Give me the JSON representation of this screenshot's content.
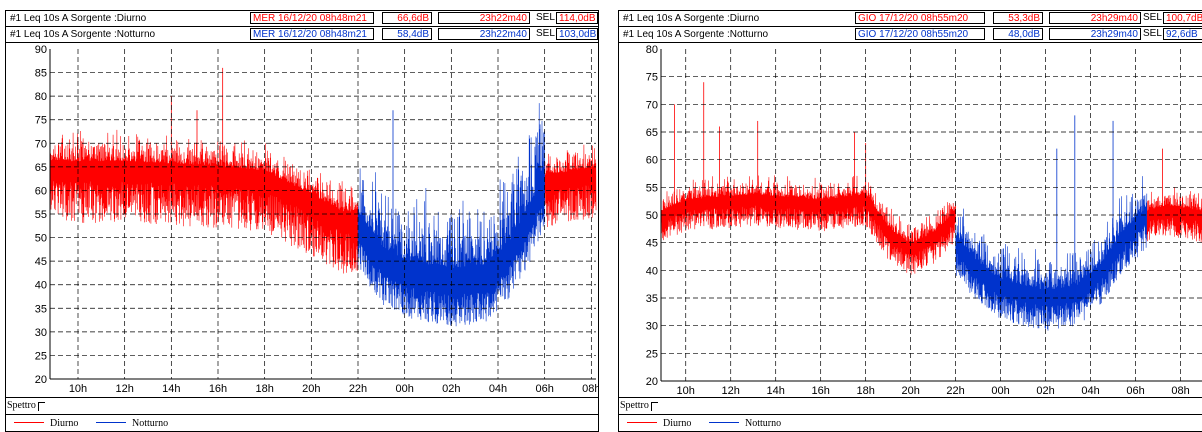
{
  "colors": {
    "diurno": "#ff0000",
    "notturno": "#0033cc"
  },
  "panels": [
    {
      "rows": [
        {
          "title": "#1  Leq 10s  A  Sorgente :Diurno",
          "datetime": "MER 16/12/20 08h48m21",
          "level": "66,6dB",
          "duration": "23h22m40",
          "sel_label": "SEL",
          "sel_value": "114,0dB",
          "color": "red"
        },
        {
          "title": "#1  Leq 10s  A  Sorgente :Notturno",
          "datetime": "MER 16/12/20 08h48m21",
          "level": "58,4dB",
          "duration": "23h22m40",
          "sel_label": "SEL",
          "sel_value": "103,0dB",
          "color": "blue"
        }
      ],
      "spettro": "Spettro",
      "legend": {
        "diurno": "Diurno",
        "notturno": "Notturno"
      }
    },
    {
      "rows": [
        {
          "title": "#1  Leq 10s  A  Sorgente :Diurno",
          "datetime": "GIO 17/12/20 08h55m20",
          "level": "53,3dB",
          "duration": "23h29m40",
          "sel_label": "SEL",
          "sel_value": "100,7dB",
          "color": "red"
        },
        {
          "title": "#1  Leq 10s  A  Sorgente :Notturno",
          "datetime": "GIO 17/12/20 08h55m20",
          "level": "48,0dB",
          "duration": "23h29m40",
          "sel_label": "SEL",
          "sel_value": "92,6dB",
          "color": "blue"
        }
      ],
      "spettro": "Spettro",
      "legend": {
        "diurno": "Diurno",
        "notturno": "Notturno"
      }
    }
  ],
  "chart_data": [
    {
      "type": "line",
      "xlabel": "",
      "ylabel": "",
      "x_start_hour": 8.8,
      "x_end_hour": 32.2,
      "x_ticks": [
        "10h",
        "12h",
        "14h",
        "16h",
        "18h",
        "20h",
        "22h",
        "00h",
        "02h",
        "04h",
        "06h",
        "08h"
      ],
      "ylim": [
        20,
        90
      ],
      "y_ticks": [
        20,
        25,
        30,
        35,
        40,
        45,
        50,
        55,
        60,
        65,
        70,
        75,
        80,
        85,
        90
      ],
      "grid": true,
      "series": [
        {
          "name": "Diurno",
          "color": "#ff0000",
          "segments": [
            {
              "from_hour": 8.8,
              "to_hour": 22.0,
              "profile": [
                [
                  8.8,
                  65
                ],
                [
                  12,
                  65
                ],
                [
                  16,
                  64
                ],
                [
                  18,
                  63
                ],
                [
                  20,
                  58
                ],
                [
                  21.5,
                  54
                ],
                [
                  22.0,
                  55
                ]
              ],
              "spread_low": 12,
              "spread_high": 8,
              "peaks": [
                [
                  14.0,
                  80
                ],
                [
                  16.2,
                  86
                ],
                [
                  15.1,
                  77
                ]
              ]
            },
            {
              "from_hour": 30.0,
              "to_hour": 32.2,
              "profile": [
                [
                  30.0,
                  62
                ],
                [
                  31.0,
                  63
                ],
                [
                  32.2,
                  64
                ]
              ],
              "spread_low": 10,
              "spread_high": 7,
              "peaks": []
            }
          ]
        },
        {
          "name": "Notturno",
          "color": "#0033cc",
          "segments": [
            {
              "from_hour": 22.0,
              "to_hour": 30.0,
              "profile": [
                [
                  22.0,
                  52
                ],
                [
                  23,
                  45
                ],
                [
                  24,
                  42
                ],
                [
                  26,
                  40
                ],
                [
                  27.5,
                  41
                ],
                [
                  28.5,
                  46
                ],
                [
                  29.5,
                  55
                ],
                [
                  30.0,
                  62
                ]
              ],
              "spread_low": 9,
              "spread_high": 22,
              "peaks": [
                [
                  23.5,
                  77
                ],
                [
                  29.8,
                  73
                ]
              ]
            }
          ]
        }
      ]
    },
    {
      "type": "line",
      "xlabel": "",
      "ylabel": "",
      "x_start_hour": 8.9,
      "x_end_hour": 33.0,
      "x_ticks": [
        "10h",
        "12h",
        "14h",
        "16h",
        "18h",
        "20h",
        "22h",
        "00h",
        "02h",
        "04h",
        "06h",
        "08h"
      ],
      "ylim": [
        20,
        80
      ],
      "y_ticks": [
        20,
        25,
        30,
        35,
        40,
        45,
        50,
        55,
        60,
        65,
        70,
        75,
        80
      ],
      "grid": true,
      "series": [
        {
          "name": "Diurno",
          "color": "#ff0000",
          "segments": [
            {
              "from_hour": 8.9,
              "to_hour": 22.0,
              "profile": [
                [
                  8.9,
                  50
                ],
                [
                  10,
                  52
                ],
                [
                  13,
                  53
                ],
                [
                  16,
                  52
                ],
                [
                  18,
                  53
                ],
                [
                  19,
                  47
                ],
                [
                  20,
                  44
                ],
                [
                  21,
                  46
                ],
                [
                  22.0,
                  50
                ]
              ],
              "spread_low": 5,
              "spread_high": 5,
              "peaks": [
                [
                  9.5,
                  70
                ],
                [
                  10.8,
                  74
                ],
                [
                  13.2,
                  67
                ],
                [
                  11.5,
                  66
                ],
                [
                  17.5,
                  65
                ],
                [
                  18.0,
                  63
                ]
              ]
            },
            {
              "from_hour": 30.5,
              "to_hour": 33.0,
              "profile": [
                [
                  30.5,
                  50
                ],
                [
                  31.5,
                  51
                ],
                [
                  33.0,
                  50
                ]
              ],
              "spread_low": 5,
              "spread_high": 5,
              "peaks": [
                [
                  31.2,
                  62
                ]
              ]
            }
          ]
        },
        {
          "name": "Notturno",
          "color": "#0033cc",
          "segments": [
            {
              "from_hour": 22.0,
              "to_hour": 30.5,
              "profile": [
                [
                  22.0,
                  45
                ],
                [
                  23,
                  40
                ],
                [
                  24,
                  37
                ],
                [
                  26,
                  35
                ],
                [
                  27.5,
                  36
                ],
                [
                  28.5,
                  40
                ],
                [
                  29.5,
                  46
                ],
                [
                  30.5,
                  50
                ]
              ],
              "spread_low": 6,
              "spread_high": 9,
              "peaks": [
                [
                  27.3,
                  68
                ],
                [
                  29.0,
                  67
                ],
                [
                  26.5,
                  62
                ]
              ]
            }
          ]
        }
      ]
    }
  ]
}
